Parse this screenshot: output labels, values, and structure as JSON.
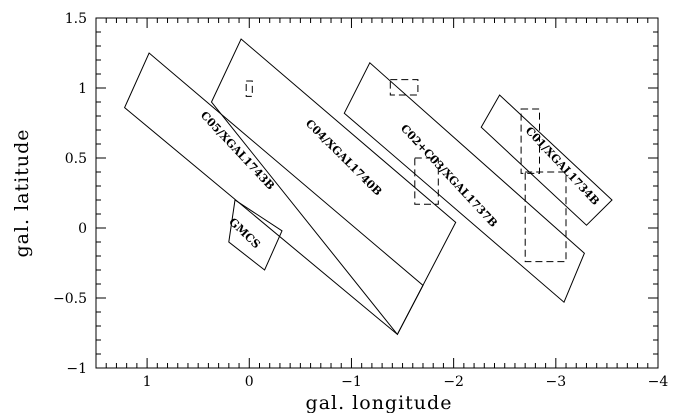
{
  "chart_data": {
    "type": "scatter",
    "xlabel": "gal. longitude",
    "ylabel": "gal. latitude",
    "xlim": [
      1.5,
      -4
    ],
    "ylim": [
      -1,
      1.5
    ],
    "x_ticks": [
      1,
      0,
      -1,
      -2,
      -3,
      -4
    ],
    "y_ticks": [
      -1,
      -0.5,
      0,
      0.5,
      1,
      1.5
    ],
    "x_tick_labels": [
      "1",
      "0",
      "−1",
      "−2",
      "−3",
      "−4"
    ],
    "y_tick_labels": [
      "−1",
      "−0.5",
      "0",
      "0.5",
      "1",
      "1.5"
    ],
    "grid": false,
    "solid_fields": [
      {
        "label": "C05/XGAL1743B",
        "label_at": [
          0.12,
          0.55
        ],
        "label_rot": 47,
        "corners": [
          [
            1.22,
            0.86
          ],
          [
            0.98,
            1.25
          ],
          [
            -1.7,
            -0.41
          ],
          [
            -1.45,
            -0.76
          ]
        ]
      },
      {
        "label": "C04/XGAL1740B",
        "label_at": [
          -0.92,
          0.5
        ],
        "label_rot": 45,
        "corners": [
          [
            0.37,
            0.9
          ],
          [
            0.08,
            1.35
          ],
          [
            -2.02,
            0.04
          ],
          [
            -1.45,
            -0.76
          ]
        ]
      },
      {
        "label": "C02+C03/XGAL1737B",
        "label_at": [
          -1.95,
          0.37
        ],
        "label_rot": 47,
        "corners": [
          [
            -0.93,
            0.82
          ],
          [
            -1.18,
            1.18
          ],
          [
            -3.28,
            -0.18
          ],
          [
            -3.08,
            -0.53
          ]
        ]
      },
      {
        "label": "C01/XGAL1734B",
        "label_at": [
          -3.06,
          0.44
        ],
        "label_rot": 47,
        "corners": [
          [
            -2.27,
            0.72
          ],
          [
            -2.45,
            0.95
          ],
          [
            -3.55,
            0.2
          ],
          [
            -3.3,
            0.02
          ]
        ]
      },
      {
        "label": "GMCS",
        "label_at": [
          0.05,
          -0.04
        ],
        "label_rot": 44,
        "corners": [
          [
            0.2,
            -0.1
          ],
          [
            0.14,
            0.2
          ],
          [
            -0.32,
            -0.02
          ],
          [
            -0.15,
            -0.3
          ]
        ]
      }
    ],
    "dashed_fields": [
      {
        "corners": [
          [
            0.03,
            1.05
          ],
          [
            -0.03,
            1.05
          ],
          [
            -0.03,
            0.94
          ],
          [
            0.03,
            0.94
          ]
        ]
      },
      {
        "corners": [
          [
            -1.38,
            1.06
          ],
          [
            -1.65,
            1.06
          ],
          [
            -1.65,
            0.95
          ],
          [
            -1.38,
            0.95
          ]
        ]
      },
      {
        "corners": [
          [
            -1.62,
            0.5
          ],
          [
            -1.85,
            0.5
          ],
          [
            -1.85,
            0.17
          ],
          [
            -1.62,
            0.17
          ]
        ]
      },
      {
        "corners": [
          [
            -2.66,
            0.85
          ],
          [
            -2.84,
            0.85
          ],
          [
            -2.84,
            0.39
          ],
          [
            -2.66,
            0.39
          ]
        ]
      },
      {
        "corners": [
          [
            -2.7,
            0.4
          ],
          [
            -3.1,
            0.4
          ],
          [
            -3.1,
            -0.24
          ],
          [
            -2.7,
            -0.24
          ]
        ]
      }
    ]
  }
}
